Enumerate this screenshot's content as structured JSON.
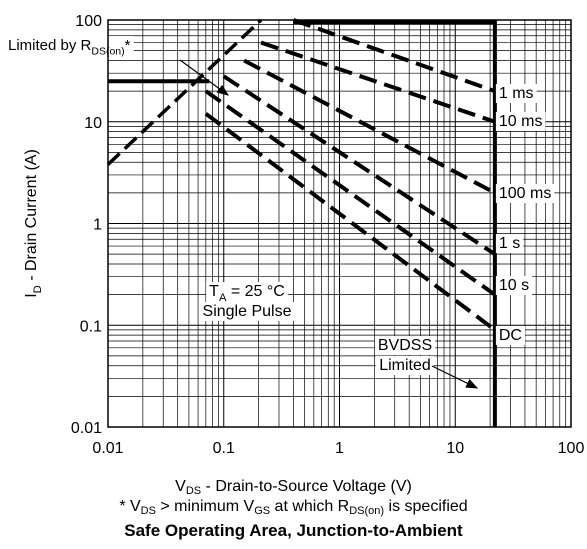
{
  "chart_data": {
    "type": "line",
    "title": "Safe Operating Area, Junction-to-Ambient",
    "x_scale": "log",
    "y_scale": "log",
    "xlim": [
      0.01,
      100
    ],
    "ylim": [
      0.01,
      100
    ],
    "grid": true,
    "x_ticks": [
      "0.01",
      "0.1",
      "1",
      "10",
      "100"
    ],
    "y_ticks": [
      "0.01",
      "0.1",
      "1",
      "10",
      "100"
    ],
    "xlabel": {
      "pre": "V",
      "sub": "DS",
      "post": " - Drain-to-Source Voltage (V)"
    },
    "ylabel": {
      "pre": "I",
      "sub": "D",
      "post": " - Drain Current (A)"
    },
    "footnote": {
      "a": "* V",
      "a_sub": "DS",
      "b": " > minimum V",
      "b_sub": "GS",
      "c": " at which R",
      "c_sub": "DS(on)",
      "d": " is specified"
    },
    "annotations": {
      "rds_limit": {
        "pre": "Limited by R",
        "sub": "DS(on)",
        "post": "*"
      },
      "conditions_line1": {
        "pre": "T",
        "sub": "A",
        "post": " = 25 °C"
      },
      "conditions_line2": "Single Pulse",
      "bvdss_line1": "BVDSS",
      "bvdss_line2": "Limited"
    },
    "limits": {
      "rds_on": [
        [
          0.01,
          3.8
        ],
        [
          0.21,
          100
        ]
      ],
      "current_limit": 25,
      "bvdss_voltage": 22
    },
    "series": [
      {
        "name": "1 ms",
        "points": [
          [
            0.4,
            100
          ],
          [
            22,
            20
          ]
        ]
      },
      {
        "name": "10 ms",
        "points": [
          [
            0.21,
            60
          ],
          [
            22,
            10
          ]
        ]
      },
      {
        "name": "100 ms",
        "points": [
          [
            0.15,
            40
          ],
          [
            22,
            2
          ]
        ]
      },
      {
        "name": "1 s",
        "points": [
          [
            0.1,
            28
          ],
          [
            22,
            0.5
          ]
        ]
      },
      {
        "name": "10 s",
        "points": [
          [
            0.07,
            20
          ],
          [
            22,
            0.2
          ]
        ]
      },
      {
        "name": "DC",
        "points": [
          [
            0.07,
            12
          ],
          [
            22,
            0.09
          ]
        ]
      }
    ]
  }
}
